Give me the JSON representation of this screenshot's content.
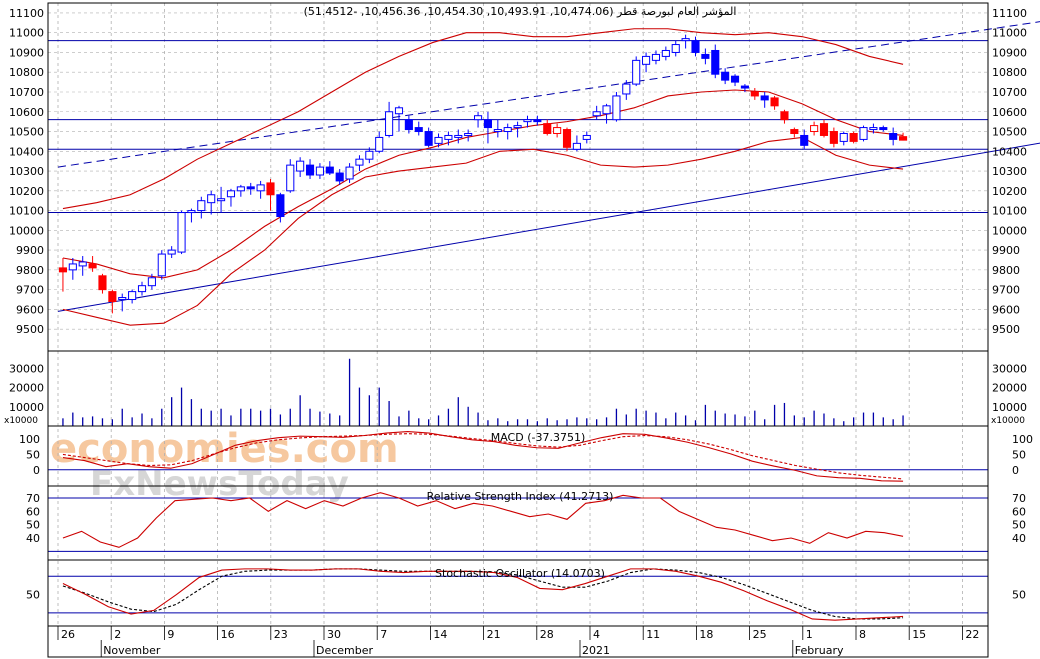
{
  "chart_data": {
    "type": "candlestick",
    "title": "المؤشر العام لبورصة قطر (10,474.06, 10,493.91, 10,454.30, 10,456.36, -51.4512)",
    "watermark": [
      "economies.com",
      "FxNewsToday"
    ],
    "price_axis": {
      "ticks": [
        11100,
        11000,
        10900,
        10800,
        10700,
        10600,
        10500,
        10400,
        10300,
        10200,
        10100,
        10000,
        9900,
        9800,
        9700,
        9600,
        9500
      ],
      "range": [
        9430,
        11130
      ]
    },
    "volume_axis": {
      "ticks": [
        30000,
        20000,
        10000
      ],
      "unit": "x10000",
      "range": [
        0,
        38000
      ]
    },
    "horizontal_levels": [
      10960,
      10560,
      10410,
      10090
    ],
    "trendlines": [
      {
        "name": "upper-channel",
        "style": "dashed",
        "from": [
          0,
          10320
        ],
        "to": [
          106,
          11105
        ]
      },
      {
        "name": "lower-channel",
        "style": "solid",
        "from": [
          0,
          9590
        ],
        "to": [
          106,
          10498
        ]
      }
    ],
    "candles": [
      {
        "o": 9810,
        "h": 9860,
        "l": 9690,
        "c": 9790,
        "up": false
      },
      {
        "o": 9800,
        "h": 9860,
        "l": 9750,
        "c": 9830,
        "up": true
      },
      {
        "o": 9820,
        "h": 9870,
        "l": 9770,
        "c": 9840,
        "up": true
      },
      {
        "o": 9830,
        "h": 9870,
        "l": 9790,
        "c": 9810,
        "up": false
      },
      {
        "o": 9770,
        "h": 9780,
        "l": 9680,
        "c": 9700,
        "up": false
      },
      {
        "o": 9690,
        "h": 9700,
        "l": 9580,
        "c": 9640,
        "up": false
      },
      {
        "o": 9650,
        "h": 9680,
        "l": 9590,
        "c": 9660,
        "up": true
      },
      {
        "o": 9650,
        "h": 9700,
        "l": 9630,
        "c": 9690,
        "up": true
      },
      {
        "o": 9690,
        "h": 9740,
        "l": 9670,
        "c": 9720,
        "up": true
      },
      {
        "o": 9720,
        "h": 9780,
        "l": 9700,
        "c": 9760,
        "up": true
      },
      {
        "o": 9770,
        "h": 9900,
        "l": 9750,
        "c": 9880,
        "up": true
      },
      {
        "o": 9880,
        "h": 9920,
        "l": 9860,
        "c": 9900,
        "up": true
      },
      {
        "o": 9890,
        "h": 10100,
        "l": 9880,
        "c": 10090,
        "up": true
      },
      {
        "o": 10090,
        "h": 10110,
        "l": 10040,
        "c": 10100,
        "up": true
      },
      {
        "o": 10100,
        "h": 10170,
        "l": 10060,
        "c": 10150,
        "up": true
      },
      {
        "o": 10140,
        "h": 10200,
        "l": 10080,
        "c": 10180,
        "up": true
      },
      {
        "o": 10150,
        "h": 10220,
        "l": 10090,
        "c": 10160,
        "up": true
      },
      {
        "o": 10170,
        "h": 10210,
        "l": 10120,
        "c": 10200,
        "up": true
      },
      {
        "o": 10200,
        "h": 10230,
        "l": 10170,
        "c": 10220,
        "up": true
      },
      {
        "o": 10220,
        "h": 10240,
        "l": 10180,
        "c": 10210,
        "up": true
      },
      {
        "o": 10200,
        "h": 10250,
        "l": 10160,
        "c": 10230,
        "up": true
      },
      {
        "o": 10240,
        "h": 10260,
        "l": 10100,
        "c": 10180,
        "up": false
      },
      {
        "o": 10180,
        "h": 10190,
        "l": 10040,
        "c": 10070,
        "up": true
      },
      {
        "o": 10200,
        "h": 10360,
        "l": 10190,
        "c": 10330,
        "up": true
      },
      {
        "o": 10300,
        "h": 10370,
        "l": 10270,
        "c": 10350,
        "up": true
      },
      {
        "o": 10330,
        "h": 10360,
        "l": 10260,
        "c": 10280,
        "up": true
      },
      {
        "o": 10280,
        "h": 10340,
        "l": 10260,
        "c": 10320,
        "up": true
      },
      {
        "o": 10320,
        "h": 10350,
        "l": 10280,
        "c": 10290,
        "up": true
      },
      {
        "o": 10290,
        "h": 10310,
        "l": 10230,
        "c": 10250,
        "up": true
      },
      {
        "o": 10260,
        "h": 10340,
        "l": 10240,
        "c": 10320,
        "up": true
      },
      {
        "o": 10330,
        "h": 10380,
        "l": 10300,
        "c": 10360,
        "up": true
      },
      {
        "o": 10360,
        "h": 10420,
        "l": 10340,
        "c": 10400,
        "up": true
      },
      {
        "o": 10400,
        "h": 10500,
        "l": 10390,
        "c": 10470,
        "up": true
      },
      {
        "o": 10480,
        "h": 10650,
        "l": 10470,
        "c": 10600,
        "up": true
      },
      {
        "o": 10590,
        "h": 10630,
        "l": 10500,
        "c": 10620,
        "up": true
      },
      {
        "o": 10560,
        "h": 10580,
        "l": 10490,
        "c": 10510,
        "up": true
      },
      {
        "o": 10520,
        "h": 10550,
        "l": 10480,
        "c": 10500,
        "up": true
      },
      {
        "o": 10500,
        "h": 10520,
        "l": 10420,
        "c": 10430,
        "up": true
      },
      {
        "o": 10440,
        "h": 10490,
        "l": 10420,
        "c": 10470,
        "up": true
      },
      {
        "o": 10460,
        "h": 10500,
        "l": 10430,
        "c": 10480,
        "up": true
      },
      {
        "o": 10470,
        "h": 10510,
        "l": 10440,
        "c": 10480,
        "up": true
      },
      {
        "o": 10480,
        "h": 10510,
        "l": 10450,
        "c": 10490,
        "up": true
      },
      {
        "o": 10560,
        "h": 10600,
        "l": 10520,
        "c": 10580,
        "up": true
      },
      {
        "o": 10560,
        "h": 10600,
        "l": 10440,
        "c": 10520,
        "up": true
      },
      {
        "o": 10500,
        "h": 10560,
        "l": 10470,
        "c": 10510,
        "up": true
      },
      {
        "o": 10500,
        "h": 10540,
        "l": 10460,
        "c": 10520,
        "up": true
      },
      {
        "o": 10520,
        "h": 10550,
        "l": 10470,
        "c": 10530,
        "up": true
      },
      {
        "o": 10550,
        "h": 10580,
        "l": 10520,
        "c": 10560,
        "up": true
      },
      {
        "o": 10560,
        "h": 10580,
        "l": 10530,
        "c": 10550,
        "up": true
      },
      {
        "o": 10540,
        "h": 10560,
        "l": 10480,
        "c": 10490,
        "up": false
      },
      {
        "o": 10490,
        "h": 10540,
        "l": 10470,
        "c": 10520,
        "up": false
      },
      {
        "o": 10510,
        "h": 10520,
        "l": 10400,
        "c": 10420,
        "up": false
      },
      {
        "o": 10410,
        "h": 10480,
        "l": 10400,
        "c": 10440,
        "up": true
      },
      {
        "o": 10460,
        "h": 10500,
        "l": 10440,
        "c": 10480,
        "up": true
      },
      {
        "o": 10580,
        "h": 10630,
        "l": 10560,
        "c": 10600,
        "up": true
      },
      {
        "o": 10590,
        "h": 10640,
        "l": 10540,
        "c": 10630,
        "up": true
      },
      {
        "o": 10560,
        "h": 10700,
        "l": 10550,
        "c": 10680,
        "up": true
      },
      {
        "o": 10690,
        "h": 10760,
        "l": 10660,
        "c": 10740,
        "up": true
      },
      {
        "o": 10740,
        "h": 10880,
        "l": 10730,
        "c": 10860,
        "up": true
      },
      {
        "o": 10840,
        "h": 10900,
        "l": 10800,
        "c": 10880,
        "up": true
      },
      {
        "o": 10860,
        "h": 10910,
        "l": 10840,
        "c": 10890,
        "up": true
      },
      {
        "o": 10880,
        "h": 10930,
        "l": 10860,
        "c": 10910,
        "up": true
      },
      {
        "o": 10900,
        "h": 10960,
        "l": 10880,
        "c": 10940,
        "up": true
      },
      {
        "o": 10960,
        "h": 10990,
        "l": 10920,
        "c": 10970,
        "up": true
      },
      {
        "o": 10960,
        "h": 10980,
        "l": 10880,
        "c": 10900,
        "up": true
      },
      {
        "o": 10890,
        "h": 10920,
        "l": 10840,
        "c": 10870,
        "up": true
      },
      {
        "o": 10910,
        "h": 10940,
        "l": 10770,
        "c": 10790,
        "up": true
      },
      {
        "o": 10800,
        "h": 10820,
        "l": 10740,
        "c": 10760,
        "up": true
      },
      {
        "o": 10780,
        "h": 10790,
        "l": 10730,
        "c": 10750,
        "up": true
      },
      {
        "o": 10730,
        "h": 10740,
        "l": 10700,
        "c": 10720,
        "up": true
      },
      {
        "o": 10700,
        "h": 10720,
        "l": 10660,
        "c": 10680,
        "up": false
      },
      {
        "o": 10680,
        "h": 10700,
        "l": 10620,
        "c": 10660,
        "up": true
      },
      {
        "o": 10670,
        "h": 10680,
        "l": 10610,
        "c": 10630,
        "up": false
      },
      {
        "o": 10600,
        "h": 10610,
        "l": 10540,
        "c": 10560,
        "up": false
      },
      {
        "o": 10510,
        "h": 10520,
        "l": 10470,
        "c": 10490,
        "up": false
      },
      {
        "o": 10480,
        "h": 10510,
        "l": 10410,
        "c": 10430,
        "up": true
      },
      {
        "o": 10500,
        "h": 10550,
        "l": 10480,
        "c": 10530,
        "up": false
      },
      {
        "o": 10540,
        "h": 10560,
        "l": 10470,
        "c": 10480,
        "up": false
      },
      {
        "o": 10500,
        "h": 10520,
        "l": 10420,
        "c": 10440,
        "up": false
      },
      {
        "o": 10450,
        "h": 10500,
        "l": 10430,
        "c": 10490,
        "up": true
      },
      {
        "o": 10490,
        "h": 10500,
        "l": 10440,
        "c": 10450,
        "up": false
      },
      {
        "o": 10460,
        "h": 10530,
        "l": 10450,
        "c": 10520,
        "up": true
      },
      {
        "o": 10510,
        "h": 10540,
        "l": 10490,
        "c": 10520,
        "up": true
      },
      {
        "o": 10520,
        "h": 10530,
        "l": 10500,
        "c": 10510,
        "up": true
      },
      {
        "o": 10490,
        "h": 10520,
        "l": 10430,
        "c": 10460,
        "up": true
      },
      {
        "o": 10474.06,
        "h": 10493.91,
        "l": 10454.3,
        "c": 10456.36,
        "up": false
      }
    ],
    "bollinger_upper": [
      10110,
      10140,
      10180,
      10260,
      10360,
      10440,
      10520,
      10600,
      10700,
      10800,
      10880,
      10950,
      11000,
      11000,
      10980,
      10980,
      11000,
      11020,
      11020,
      11000,
      10990,
      11000,
      10980,
      10940,
      10880,
      10840
    ],
    "bollinger_middle": [
      9860,
      9830,
      9780,
      9760,
      9800,
      9900,
      10020,
      10120,
      10210,
      10310,
      10380,
      10420,
      10470,
      10500,
      10530,
      10550,
      10580,
      10620,
      10680,
      10700,
      10710,
      10700,
      10640,
      10560,
      10500,
      10480
    ],
    "bollinger_lower": [
      9600,
      9560,
      9520,
      9530,
      9620,
      9780,
      9900,
      10060,
      10180,
      10270,
      10300,
      10320,
      10340,
      10400,
      10410,
      10380,
      10330,
      10320,
      10330,
      10360,
      10400,
      10450,
      10470,
      10380,
      10330,
      10310
    ],
    "volume": [
      4000,
      7000,
      4500,
      5000,
      4000,
      3500,
      9000,
      4500,
      6500,
      4000,
      9000,
      15000,
      20000,
      14000,
      9000,
      8000,
      9000,
      5500,
      9000,
      9000,
      8000,
      9000,
      6000,
      9000,
      16000,
      9000,
      7500,
      6500,
      5500,
      35000,
      20000,
      16000,
      20000,
      13000,
      5000,
      8000,
      4000,
      3500,
      5500,
      9000,
      15000,
      10000,
      7000,
      3000,
      4000,
      2500,
      3500,
      3500,
      2500,
      4000,
      3000,
      3500,
      4500,
      4000,
      3500,
      4500,
      9000,
      6000,
      9000,
      8000,
      7000,
      4000,
      7000,
      5500,
      3000,
      11000,
      8000,
      6500,
      6000,
      5000,
      8000,
      3500,
      11000,
      12000,
      5500,
      4500,
      8000,
      6500,
      4000,
      2500,
      4500,
      7000,
      7000,
      4500,
      3500,
      5500
    ],
    "macd": {
      "label": "MACD (-37.3751)",
      "ticks": [
        100,
        50,
        0
      ],
      "range": [
        -40,
        130
      ],
      "line": [
        40,
        30,
        10,
        20,
        10,
        5,
        20,
        50,
        80,
        95,
        105,
        110,
        108,
        106,
        112,
        120,
        125,
        120,
        108,
        98,
        92,
        80,
        72,
        70,
        88,
        105,
        118,
        116,
        104,
        90,
        72,
        52,
        28,
        12,
        -2,
        -20,
        -26,
        -28,
        -36,
        -37.3751
      ],
      "signal": [
        50,
        40,
        30,
        20,
        14,
        16,
        30,
        52,
        72,
        88,
        98,
        104,
        108,
        110,
        112,
        116,
        118,
        116,
        110,
        102,
        95,
        86,
        78,
        74,
        80,
        95,
        108,
        112,
        108,
        98,
        84,
        66,
        46,
        30,
        14,
        2,
        -10,
        -18,
        -24,
        -30
      ]
    },
    "rsi": {
      "label": "Relative Strength Index (41.2713)",
      "ticks": [
        70,
        60,
        50,
        40
      ],
      "levels": [
        70,
        30
      ],
      "range": [
        25,
        76
      ],
      "line": [
        40,
        45,
        37,
        33,
        40,
        55,
        68,
        69,
        70,
        68,
        70,
        60,
        68,
        62,
        68,
        64,
        70,
        74,
        70,
        64,
        68,
        62,
        66,
        64,
        60,
        56,
        58,
        54,
        66,
        68,
        72,
        70,
        70,
        60,
        54,
        48,
        46,
        42,
        38,
        40,
        36,
        44,
        40,
        45,
        44,
        41.2713
      ]
    },
    "stochastic": {
      "label": "Stochastic Oscillator (14.0703)",
      "ticks": [
        50
      ],
      "levels": [
        80,
        20
      ],
      "range": [
        5,
        100
      ],
      "k": [
        68,
        50,
        30,
        18,
        24,
        50,
        78,
        90,
        92,
        92,
        90,
        90,
        92,
        92,
        88,
        86,
        88,
        88,
        88,
        86,
        78,
        60,
        58,
        68,
        80,
        92,
        92,
        88,
        80,
        70,
        56,
        40,
        26,
        10,
        8,
        10,
        12,
        14.0703
      ],
      "d": [
        64,
        52,
        38,
        26,
        22,
        34,
        58,
        80,
        88,
        90,
        90,
        90,
        92,
        92,
        90,
        88,
        88,
        88,
        88,
        87,
        82,
        72,
        62,
        62,
        72,
        86,
        92,
        90,
        86,
        78,
        66,
        52,
        38,
        24,
        14,
        10,
        10,
        12
      ]
    },
    "x_axis": {
      "day_labels": [
        "26",
        "2",
        "9",
        "16",
        "23",
        "30",
        "7",
        "14",
        "21",
        "28",
        "4",
        "11",
        "18",
        "25",
        "1",
        "8",
        "15",
        "22"
      ],
      "month_labels": [
        "November",
        "December",
        "2021",
        "February"
      ]
    },
    "colors": {
      "up": "#0000ff",
      "down": "#ff0000",
      "band": "#cc0000",
      "level": "#0000aa",
      "grid": "#b0b0b0",
      "watermark_orange": "#f6c89f",
      "watermark_gray": "#d6d6d6"
    }
  }
}
